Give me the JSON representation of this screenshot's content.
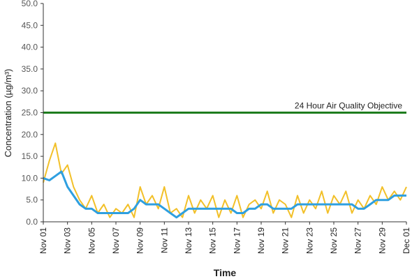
{
  "chart_data": {
    "type": "line",
    "y_label": "Concentration (µg/m³)",
    "x_label": "Time",
    "x": [
      0,
      0.5,
      1,
      1.5,
      2,
      2.5,
      3,
      3.5,
      4,
      4.5,
      5,
      5.5,
      6,
      6.5,
      7,
      7.5,
      8,
      8.5,
      9,
      9.5,
      10,
      10.5,
      11,
      11.5,
      12,
      12.5,
      13,
      13.5,
      14,
      14.5,
      15,
      15.5,
      16,
      16.5,
      17,
      17.5,
      18,
      18.5,
      19,
      19.5,
      20,
      20.5,
      21,
      21.5,
      22,
      22.5,
      23,
      23.5,
      24,
      24.5,
      25,
      25.5,
      26,
      26.5,
      27,
      27.5,
      28,
      28.5,
      29,
      29.5,
      30
    ],
    "series": [
      {
        "color": "#f2c029",
        "width": 2,
        "values": [
          9,
          14,
          18,
          11,
          13,
          8,
          5,
          3,
          6,
          2,
          4,
          1,
          3,
          2,
          4,
          1,
          8,
          4,
          6,
          3,
          8,
          2,
          3,
          1,
          6,
          2,
          5,
          3,
          6,
          1,
          5,
          2,
          6,
          1,
          4,
          5,
          3,
          7,
          2,
          5,
          4,
          1,
          6,
          2,
          5,
          3,
          7,
          2,
          6,
          4,
          7,
          2,
          5,
          3,
          6,
          4,
          8,
          5,
          7,
          5,
          8
        ]
      },
      {
        "color": "#2e9fe0",
        "width": 3,
        "values": [
          10,
          9.5,
          10.5,
          11.5,
          8,
          6,
          4,
          3,
          3,
          2,
          2,
          2,
          2,
          2,
          2,
          3,
          5,
          4,
          4,
          4,
          3,
          2,
          1,
          2,
          3,
          3,
          3,
          3,
          3,
          3,
          3,
          3,
          2,
          2,
          3,
          3,
          4,
          4,
          3,
          3,
          3,
          3,
          4,
          4,
          4,
          4,
          4,
          4,
          4,
          4,
          4,
          4,
          3,
          3,
          4,
          5,
          5,
          5,
          6,
          6,
          6
        ]
      }
    ],
    "annotations": [
      {
        "text": "24 Hour Air Quality Objective",
        "y": 25,
        "color": "#1e7d1e"
      }
    ],
    "xlim": [
      0,
      30
    ],
    "xticks": [
      {
        "value": 0,
        "label": "Nov 01"
      },
      {
        "value": 2,
        "label": "Nov 03"
      },
      {
        "value": 4,
        "label": "Nov 05"
      },
      {
        "value": 6,
        "label": "Nov 07"
      },
      {
        "value": 8,
        "label": "Nov 09"
      },
      {
        "value": 10,
        "label": "Nov 11"
      },
      {
        "value": 12,
        "label": "Nov 13"
      },
      {
        "value": 14,
        "label": "Nov 15"
      },
      {
        "value": 16,
        "label": "Nov 17"
      },
      {
        "value": 18,
        "label": "Nov 19"
      },
      {
        "value": 20,
        "label": "Nov 21"
      },
      {
        "value": 22,
        "label": "Nov 23"
      },
      {
        "value": 24,
        "label": "Nov 25"
      },
      {
        "value": 26,
        "label": "Nov 27"
      },
      {
        "value": 28,
        "label": "Nov 29"
      },
      {
        "value": 30,
        "label": "Dec 01"
      }
    ],
    "ylim": [
      0,
      50
    ],
    "yticks": [
      {
        "value": 0,
        "label": "0.0"
      },
      {
        "value": 5,
        "label": "5.0"
      },
      {
        "value": 10,
        "label": "10.0"
      },
      {
        "value": 15,
        "label": "15.0"
      },
      {
        "value": 20,
        "label": "20.0"
      },
      {
        "value": 25,
        "label": "25.0"
      },
      {
        "value": 30,
        "label": "30.0"
      },
      {
        "value": 35,
        "label": "35.0"
      },
      {
        "value": 40,
        "label": "40.0"
      },
      {
        "value": 45,
        "label": "45.0"
      },
      {
        "value": 50,
        "label": "50.0"
      }
    ],
    "grid": false
  }
}
